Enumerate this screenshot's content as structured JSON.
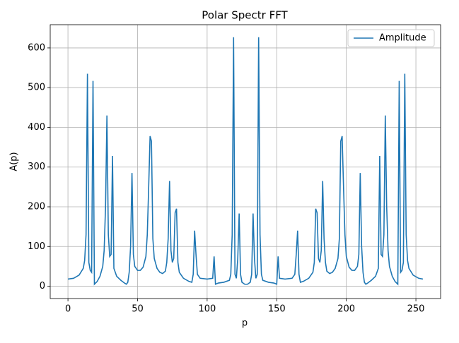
{
  "chart_data": {
    "type": "line",
    "title": "Polar Spectr FFT",
    "xlabel": "p",
    "ylabel": "A(p)",
    "xlim": [
      -12.75,
      267.75
    ],
    "ylim": [
      -31,
      658.5
    ],
    "xticks": [
      0,
      50,
      100,
      150,
      200,
      250
    ],
    "yticks": [
      0,
      100,
      200,
      300,
      400,
      500,
      600
    ],
    "grid": true,
    "legend": "upper right",
    "series": [
      {
        "name": "Amplitude",
        "color": "#1f77b4",
        "x": [
          0,
          4,
          8,
          11,
          12,
          13,
          14,
          15,
          16,
          17,
          18,
          19,
          21,
          23,
          25,
          26,
          27,
          28,
          29,
          30,
          31,
          32,
          33,
          35,
          38,
          41,
          42,
          43,
          44,
          45,
          46,
          47,
          48,
          50,
          52,
          54,
          56,
          57,
          58,
          59,
          60,
          61,
          62,
          64,
          66,
          68,
          70,
          71,
          72,
          73,
          74,
          75,
          76,
          77,
          78,
          79,
          80,
          83,
          87,
          89,
          90,
          91,
          92,
          93,
          95,
          100,
          104,
          105,
          106,
          108,
          112,
          116,
          117,
          118,
          119,
          120,
          121,
          122,
          123,
          124,
          125,
          127,
          128,
          129,
          131,
          132,
          133,
          134,
          135,
          136,
          137,
          138,
          139,
          140,
          144,
          148,
          150,
          151,
          152,
          156,
          161,
          163,
          164,
          165,
          166,
          167,
          169,
          173,
          176,
          177,
          178,
          179,
          180,
          181,
          182,
          183,
          184,
          185,
          186,
          188,
          190,
          192,
          194,
          195,
          196,
          197,
          198,
          199,
          200,
          202,
          204,
          206,
          208,
          209,
          210,
          211,
          212,
          213,
          214,
          215,
          218,
          221,
          223,
          224,
          225,
          226,
          227,
          228,
          229,
          230,
          231,
          233,
          235,
          237,
          238,
          239,
          240,
          241,
          242,
          243,
          244,
          245,
          248,
          252,
          255
        ],
        "values": [
          18,
          20,
          28,
          45,
          65,
          130,
          535,
          60,
          40,
          35,
          517,
          5,
          12,
          25,
          50,
          90,
          200,
          430,
          130,
          75,
          80,
          328,
          45,
          25,
          15,
          7,
          5,
          10,
          35,
          100,
          285,
          80,
          50,
          40,
          40,
          48,
          75,
          130,
          250,
          378,
          365,
          120,
          70,
          45,
          35,
          32,
          38,
          60,
          120,
          265,
          90,
          60,
          70,
          185,
          195,
          60,
          35,
          20,
          12,
          10,
          30,
          140,
          80,
          30,
          20,
          18,
          20,
          75,
          5,
          8,
          10,
          15,
          30,
          130,
          627,
          30,
          20,
          70,
          183,
          30,
          10,
          5,
          5,
          5,
          10,
          30,
          183,
          70,
          20,
          30,
          627,
          130,
          30,
          15,
          10,
          8,
          5,
          75,
          20,
          18,
          20,
          30,
          80,
          140,
          30,
          10,
          12,
          20,
          35,
          60,
          195,
          185,
          70,
          60,
          90,
          265,
          120,
          60,
          38,
          32,
          35,
          45,
          70,
          120,
          365,
          378,
          250,
          130,
          75,
          48,
          40,
          40,
          50,
          80,
          285,
          100,
          35,
          10,
          5,
          7,
          15,
          25,
          45,
          328,
          80,
          75,
          130,
          430,
          200,
          90,
          50,
          25,
          12,
          5,
          517,
          35,
          40,
          60,
          535,
          130,
          65,
          45,
          28,
          20,
          18
        ]
      }
    ]
  }
}
